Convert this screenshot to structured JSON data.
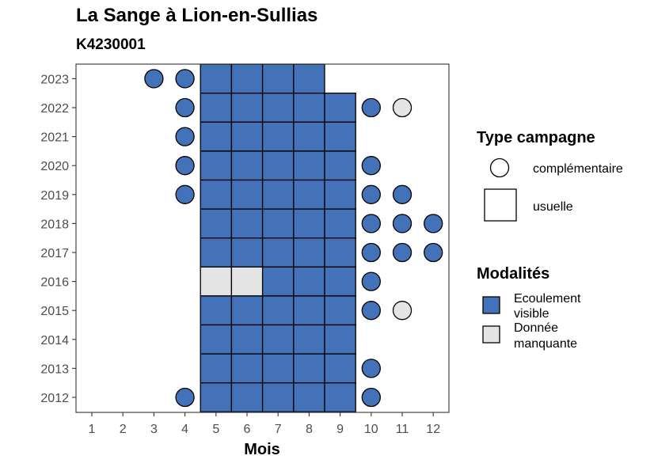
{
  "chart_data": {
    "type": "heatmap",
    "title": "La Sange à Lion-en-Sullias",
    "subtitle": "K4230001",
    "xlabel": "Mois",
    "ylabel": "",
    "x_ticks": [
      "1",
      "2",
      "3",
      "4",
      "5",
      "6",
      "7",
      "8",
      "9",
      "10",
      "11",
      "12"
    ],
    "y_ticks": [
      "2012",
      "2013",
      "2014",
      "2015",
      "2016",
      "2017",
      "2018",
      "2019",
      "2020",
      "2021",
      "2022",
      "2023"
    ],
    "grid": false,
    "legend_placement": "right",
    "legend": {
      "type_title": "Type campagne",
      "type_entries": [
        {
          "key": "complementaire",
          "label": "complémentaire",
          "shape": "circle"
        },
        {
          "key": "usuelle",
          "label": "usuelle",
          "shape": "square"
        }
      ],
      "modalites_title": "Modalités",
      "modalites_entries": [
        {
          "key": "visible",
          "label_line1": "Ecoulement",
          "label_line2": "visible",
          "color": "#4472b8"
        },
        {
          "key": "manquante",
          "label_line1": "Donnée",
          "label_line2": "manquante",
          "color": "#e4e4e4"
        }
      ]
    },
    "colors": {
      "visible": "#4472b8",
      "manquante": "#e4e4e4"
    },
    "observations": [
      {
        "year": 2023,
        "month": 3,
        "type": "complementaire",
        "modalite": "visible"
      },
      {
        "year": 2023,
        "month": 4,
        "type": "complementaire",
        "modalite": "visible"
      },
      {
        "year": 2023,
        "month": 5,
        "type": "usuelle",
        "modalite": "visible"
      },
      {
        "year": 2023,
        "month": 6,
        "type": "usuelle",
        "modalite": "visible"
      },
      {
        "year": 2023,
        "month": 7,
        "type": "usuelle",
        "modalite": "visible"
      },
      {
        "year": 2023,
        "month": 8,
        "type": "usuelle",
        "modalite": "visible"
      },
      {
        "year": 2022,
        "month": 4,
        "type": "complementaire",
        "modalite": "visible"
      },
      {
        "year": 2022,
        "month": 5,
        "type": "usuelle",
        "modalite": "visible"
      },
      {
        "year": 2022,
        "month": 6,
        "type": "usuelle",
        "modalite": "visible"
      },
      {
        "year": 2022,
        "month": 7,
        "type": "usuelle",
        "modalite": "visible"
      },
      {
        "year": 2022,
        "month": 8,
        "type": "usuelle",
        "modalite": "visible"
      },
      {
        "year": 2022,
        "month": 9,
        "type": "usuelle",
        "modalite": "visible"
      },
      {
        "year": 2022,
        "month": 10,
        "type": "complementaire",
        "modalite": "visible"
      },
      {
        "year": 2022,
        "month": 11,
        "type": "complementaire",
        "modalite": "manquante"
      },
      {
        "year": 2021,
        "month": 4,
        "type": "complementaire",
        "modalite": "visible"
      },
      {
        "year": 2021,
        "month": 5,
        "type": "usuelle",
        "modalite": "visible"
      },
      {
        "year": 2021,
        "month": 6,
        "type": "usuelle",
        "modalite": "visible"
      },
      {
        "year": 2021,
        "month": 7,
        "type": "usuelle",
        "modalite": "visible"
      },
      {
        "year": 2021,
        "month": 8,
        "type": "usuelle",
        "modalite": "visible"
      },
      {
        "year": 2021,
        "month": 9,
        "type": "usuelle",
        "modalite": "visible"
      },
      {
        "year": 2020,
        "month": 4,
        "type": "complementaire",
        "modalite": "visible"
      },
      {
        "year": 2020,
        "month": 5,
        "type": "usuelle",
        "modalite": "visible"
      },
      {
        "year": 2020,
        "month": 6,
        "type": "usuelle",
        "modalite": "visible"
      },
      {
        "year": 2020,
        "month": 7,
        "type": "usuelle",
        "modalite": "visible"
      },
      {
        "year": 2020,
        "month": 8,
        "type": "usuelle",
        "modalite": "visible"
      },
      {
        "year": 2020,
        "month": 9,
        "type": "usuelle",
        "modalite": "visible"
      },
      {
        "year": 2020,
        "month": 10,
        "type": "complementaire",
        "modalite": "visible"
      },
      {
        "year": 2019,
        "month": 4,
        "type": "complementaire",
        "modalite": "visible"
      },
      {
        "year": 2019,
        "month": 5,
        "type": "usuelle",
        "modalite": "visible"
      },
      {
        "year": 2019,
        "month": 6,
        "type": "usuelle",
        "modalite": "visible"
      },
      {
        "year": 2019,
        "month": 7,
        "type": "usuelle",
        "modalite": "visible"
      },
      {
        "year": 2019,
        "month": 8,
        "type": "usuelle",
        "modalite": "visible"
      },
      {
        "year": 2019,
        "month": 9,
        "type": "usuelle",
        "modalite": "visible"
      },
      {
        "year": 2019,
        "month": 10,
        "type": "complementaire",
        "modalite": "visible"
      },
      {
        "year": 2019,
        "month": 11,
        "type": "complementaire",
        "modalite": "visible"
      },
      {
        "year": 2018,
        "month": 5,
        "type": "usuelle",
        "modalite": "visible"
      },
      {
        "year": 2018,
        "month": 6,
        "type": "usuelle",
        "modalite": "visible"
      },
      {
        "year": 2018,
        "month": 7,
        "type": "usuelle",
        "modalite": "visible"
      },
      {
        "year": 2018,
        "month": 8,
        "type": "usuelle",
        "modalite": "visible"
      },
      {
        "year": 2018,
        "month": 9,
        "type": "usuelle",
        "modalite": "visible"
      },
      {
        "year": 2018,
        "month": 10,
        "type": "complementaire",
        "modalite": "visible"
      },
      {
        "year": 2018,
        "month": 11,
        "type": "complementaire",
        "modalite": "visible"
      },
      {
        "year": 2018,
        "month": 12,
        "type": "complementaire",
        "modalite": "visible"
      },
      {
        "year": 2017,
        "month": 5,
        "type": "usuelle",
        "modalite": "visible"
      },
      {
        "year": 2017,
        "month": 6,
        "type": "usuelle",
        "modalite": "visible"
      },
      {
        "year": 2017,
        "month": 7,
        "type": "usuelle",
        "modalite": "visible"
      },
      {
        "year": 2017,
        "month": 8,
        "type": "usuelle",
        "modalite": "visible"
      },
      {
        "year": 2017,
        "month": 9,
        "type": "usuelle",
        "modalite": "visible"
      },
      {
        "year": 2017,
        "month": 10,
        "type": "complementaire",
        "modalite": "visible"
      },
      {
        "year": 2017,
        "month": 11,
        "type": "complementaire",
        "modalite": "visible"
      },
      {
        "year": 2017,
        "month": 12,
        "type": "complementaire",
        "modalite": "visible"
      },
      {
        "year": 2016,
        "month": 5,
        "type": "usuelle",
        "modalite": "manquante"
      },
      {
        "year": 2016,
        "month": 6,
        "type": "usuelle",
        "modalite": "manquante"
      },
      {
        "year": 2016,
        "month": 7,
        "type": "usuelle",
        "modalite": "visible"
      },
      {
        "year": 2016,
        "month": 8,
        "type": "usuelle",
        "modalite": "visible"
      },
      {
        "year": 2016,
        "month": 9,
        "type": "usuelle",
        "modalite": "visible"
      },
      {
        "year": 2016,
        "month": 10,
        "type": "complementaire",
        "modalite": "visible"
      },
      {
        "year": 2015,
        "month": 5,
        "type": "usuelle",
        "modalite": "visible"
      },
      {
        "year": 2015,
        "month": 6,
        "type": "usuelle",
        "modalite": "visible"
      },
      {
        "year": 2015,
        "month": 7,
        "type": "usuelle",
        "modalite": "visible"
      },
      {
        "year": 2015,
        "month": 8,
        "type": "usuelle",
        "modalite": "visible"
      },
      {
        "year": 2015,
        "month": 9,
        "type": "usuelle",
        "modalite": "visible"
      },
      {
        "year": 2015,
        "month": 10,
        "type": "complementaire",
        "modalite": "visible"
      },
      {
        "year": 2015,
        "month": 11,
        "type": "complementaire",
        "modalite": "manquante"
      },
      {
        "year": 2014,
        "month": 5,
        "type": "usuelle",
        "modalite": "visible"
      },
      {
        "year": 2014,
        "month": 6,
        "type": "usuelle",
        "modalite": "visible"
      },
      {
        "year": 2014,
        "month": 7,
        "type": "usuelle",
        "modalite": "visible"
      },
      {
        "year": 2014,
        "month": 8,
        "type": "usuelle",
        "modalite": "visible"
      },
      {
        "year": 2014,
        "month": 9,
        "type": "usuelle",
        "modalite": "visible"
      },
      {
        "year": 2013,
        "month": 5,
        "type": "usuelle",
        "modalite": "visible"
      },
      {
        "year": 2013,
        "month": 6,
        "type": "usuelle",
        "modalite": "visible"
      },
      {
        "year": 2013,
        "month": 7,
        "type": "usuelle",
        "modalite": "visible"
      },
      {
        "year": 2013,
        "month": 8,
        "type": "usuelle",
        "modalite": "visible"
      },
      {
        "year": 2013,
        "month": 9,
        "type": "usuelle",
        "modalite": "visible"
      },
      {
        "year": 2013,
        "month": 10,
        "type": "complementaire",
        "modalite": "visible"
      },
      {
        "year": 2012,
        "month": 4,
        "type": "complementaire",
        "modalite": "visible"
      },
      {
        "year": 2012,
        "month": 5,
        "type": "usuelle",
        "modalite": "visible"
      },
      {
        "year": 2012,
        "month": 6,
        "type": "usuelle",
        "modalite": "visible"
      },
      {
        "year": 2012,
        "month": 7,
        "type": "usuelle",
        "modalite": "visible"
      },
      {
        "year": 2012,
        "month": 8,
        "type": "usuelle",
        "modalite": "visible"
      },
      {
        "year": 2012,
        "month": 9,
        "type": "usuelle",
        "modalite": "visible"
      },
      {
        "year": 2012,
        "month": 10,
        "type": "complementaire",
        "modalite": "visible"
      }
    ]
  }
}
